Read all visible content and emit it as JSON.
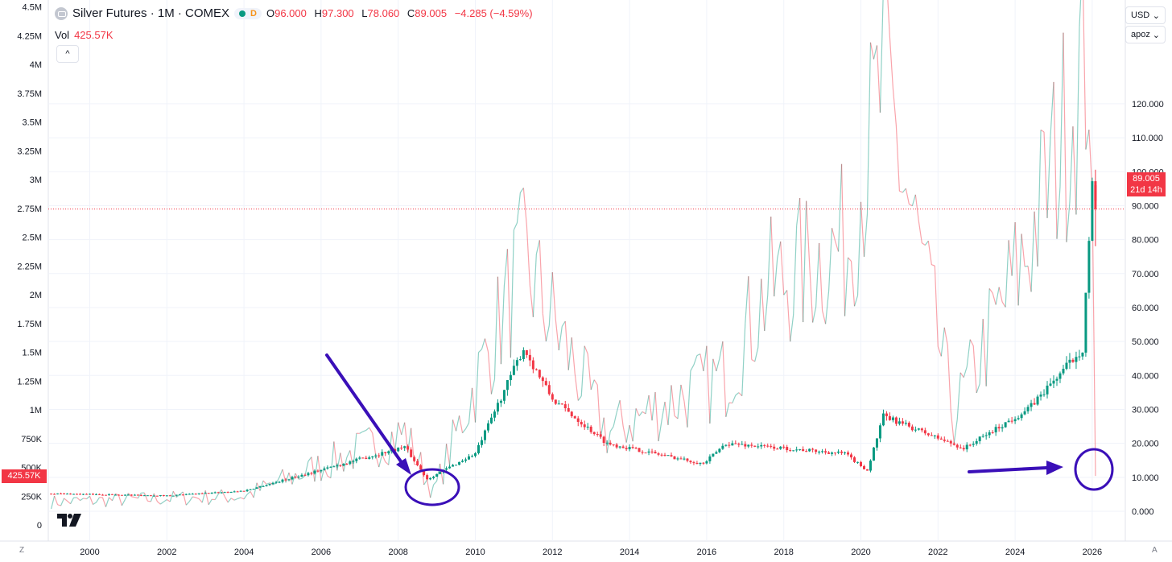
{
  "header": {
    "symbol_title": "Silver Futures · 1M · COMEX",
    "interval_badge": "D",
    "ohlc": [
      {
        "key": "O",
        "value": "96.000"
      },
      {
        "key": "H",
        "value": "97.300"
      },
      {
        "key": "L",
        "value": "78.060"
      },
      {
        "key": "C",
        "value": "89.005"
      }
    ],
    "change": "−4.285 (−4.59%)"
  },
  "volume": {
    "label": "Vol",
    "value": "425.57K"
  },
  "controls": {
    "currency": "USD",
    "scale": "apoz",
    "collapse_symbol": "^"
  },
  "price_tag": {
    "price": "89.005",
    "countdown": "21d 14h"
  },
  "volume_tag": "425.57K",
  "corner_left": "Z",
  "corner_right": "A",
  "colors": {
    "up": "#089981",
    "down": "#f23645",
    "annotation": "#3a0fb8",
    "grid": "#f0f3fa"
  },
  "chart_data": {
    "type": "candlestick",
    "x_axis": {
      "ticks": [
        "2000",
        "2002",
        "2004",
        "2006",
        "2008",
        "2010",
        "2012",
        "2014",
        "2016",
        "2018",
        "2020",
        "2022",
        "2024",
        "2026"
      ]
    },
    "price_axis": {
      "ticks": [
        "0.000",
        "10.000",
        "20.000",
        "30.000",
        "40.000",
        "50.000",
        "60.000",
        "70.000",
        "80.000",
        "90.000",
        "100.000",
        "110.000",
        "120.000"
      ],
      "range": [
        0,
        120
      ]
    },
    "volume_axis": {
      "ticks": [
        "0",
        "250K",
        "500K",
        "750K",
        "1M",
        "1.25M",
        "1.5M",
        "1.75M",
        "2M",
        "2.25M",
        "2.5M",
        "2.75M",
        "3M",
        "3.25M",
        "3.5M",
        "3.75M",
        "4M",
        "4.25M",
        "4.5M"
      ],
      "range": [
        0,
        4500000
      ]
    },
    "last_price": 89.005,
    "price_series_key_points": [
      {
        "date": "1999-01",
        "price": 5.2
      },
      {
        "date": "2002-01",
        "price": 4.6
      },
      {
        "date": "2004-01",
        "price": 6.0
      },
      {
        "date": "2006-04",
        "price": 13.0
      },
      {
        "date": "2008-03",
        "price": 19.0
      },
      {
        "date": "2008-10",
        "price": 9.5
      },
      {
        "date": "2010-01",
        "price": 17.0
      },
      {
        "date": "2011-04",
        "price": 48.0
      },
      {
        "date": "2012-01",
        "price": 33.0
      },
      {
        "date": "2013-06",
        "price": 20.0
      },
      {
        "date": "2015-12",
        "price": 14.0
      },
      {
        "date": "2016-07",
        "price": 20.0
      },
      {
        "date": "2019-08",
        "price": 17.0
      },
      {
        "date": "2020-03",
        "price": 12.0
      },
      {
        "date": "2020-08",
        "price": 28.0
      },
      {
        "date": "2022-09",
        "price": 18.5
      },
      {
        "date": "2024-05",
        "price": 30.0
      },
      {
        "date": "2025-10",
        "price": 48.0
      },
      {
        "date": "2026-01",
        "price": 96.0
      },
      {
        "date": "2026-02",
        "price": 89.005
      }
    ],
    "volume_series_key_points": [
      {
        "date": "1999-01",
        "volume": 200000
      },
      {
        "date": "2004-01",
        "volume": 250000
      },
      {
        "date": "2008-03",
        "volume": 800000
      },
      {
        "date": "2008-12",
        "volume": 280000
      },
      {
        "date": "2011-04",
        "volume": 2300000
      },
      {
        "date": "2013-06",
        "volume": 800000
      },
      {
        "date": "2016-07",
        "volume": 1300000
      },
      {
        "date": "2017-08",
        "volume": 2050000
      },
      {
        "date": "2019-09",
        "volume": 2450000
      },
      {
        "date": "2020-08",
        "volume": 3850000
      },
      {
        "date": "2022-06",
        "volume": 950000
      },
      {
        "date": "2024-05",
        "volume": 2400000
      },
      {
        "date": "2025-12",
        "volume": 4150000
      },
      {
        "date": "2026-02",
        "volume": 425570
      }
    ]
  }
}
